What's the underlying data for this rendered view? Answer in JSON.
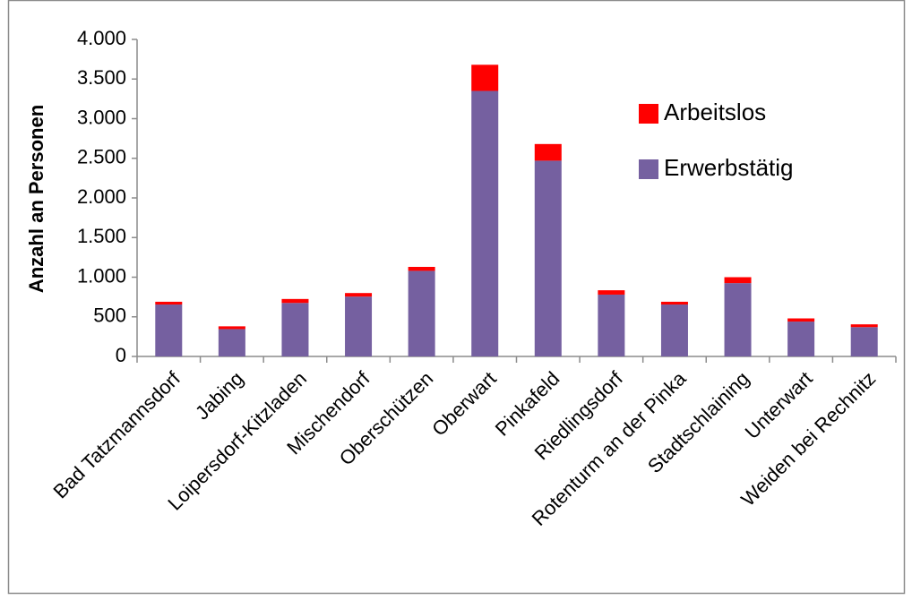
{
  "chart_data": {
    "type": "bar",
    "stacked": true,
    "title": "",
    "xlabel": "",
    "ylabel": "Anzahl an Personen",
    "ylim": [
      0,
      4000
    ],
    "yticks": [
      0,
      500,
      1000,
      1500,
      2000,
      2500,
      3000,
      3500,
      4000
    ],
    "ytick_labels": [
      "0",
      "500",
      "1.000",
      "1.500",
      "2.000",
      "2.500",
      "3.000",
      "3.500",
      "4.000"
    ],
    "grid": false,
    "legend_position": "top-right",
    "categories": [
      "Bad Tatzmannsdorf",
      "Jabing",
      "Loipersdorf-Kitzladen",
      "Mischendorf",
      "Oberschützen",
      "Oberwart",
      "Pinkafeld",
      "Riedlingsdorf",
      "Rotenturm an der Pinka",
      "Stadtschlaining",
      "Unterwart",
      "Weiden bei Rechnitz"
    ],
    "series": [
      {
        "name": "Erwerbstätig",
        "color": "#7560A0",
        "values": [
          655,
          345,
          675,
          755,
          1080,
          3350,
          2470,
          780,
          655,
          925,
          440,
          370
        ]
      },
      {
        "name": "Arbeitslos",
        "color": "#FF0000",
        "values": [
          35,
          35,
          50,
          45,
          50,
          330,
          210,
          55,
          35,
          75,
          40,
          35
        ]
      }
    ],
    "legend_order": [
      "Arbeitslos",
      "Erwerbstätig"
    ]
  }
}
